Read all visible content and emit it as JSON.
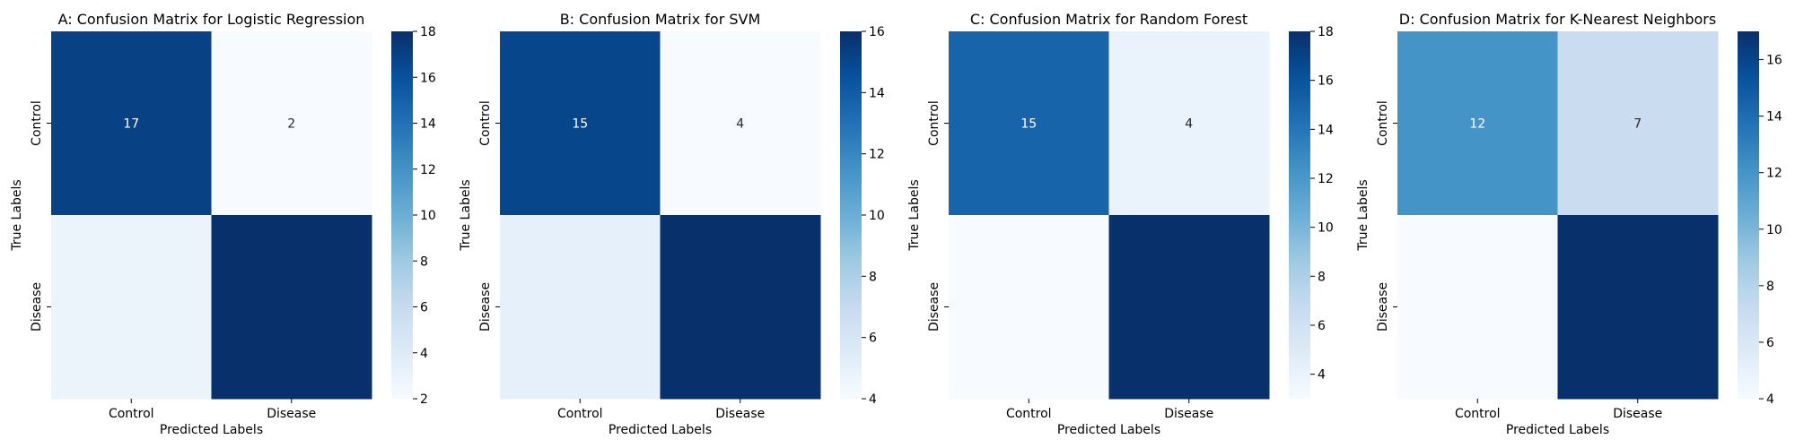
{
  "chart_data": [
    {
      "type": "heatmap",
      "title": "A: Confusion Matrix for Logistic Regression",
      "xlabel": "Predicted Labels",
      "ylabel": "True Labels",
      "x_categories": [
        "Control",
        "Disease"
      ],
      "y_categories": [
        "Control",
        "Disease"
      ],
      "values": [
        [
          17,
          2
        ],
        [
          3,
          18
        ]
      ],
      "shown_annotations": [
        "17",
        "2"
      ],
      "colorbar_range": [
        2,
        18
      ],
      "colorbar_ticks": [
        2,
        4,
        6,
        8,
        10,
        12,
        14,
        16,
        18
      ],
      "colormap": "Blues"
    },
    {
      "type": "heatmap",
      "title": "B: Confusion Matrix for SVM",
      "xlabel": "Predicted Labels",
      "ylabel": "True Labels",
      "x_categories": [
        "Control",
        "Disease"
      ],
      "y_categories": [
        "Control",
        "Disease"
      ],
      "values": [
        [
          15,
          4
        ],
        [
          5,
          16
        ]
      ],
      "shown_annotations": [
        "15",
        "4"
      ],
      "colorbar_range": [
        4,
        16
      ],
      "colorbar_ticks": [
        4,
        6,
        8,
        10,
        12,
        14,
        16
      ],
      "colormap": "Blues"
    },
    {
      "type": "heatmap",
      "title": "C: Confusion Matrix for Random Forest",
      "xlabel": "Predicted Labels",
      "ylabel": "True Labels",
      "x_categories": [
        "Control",
        "Disease"
      ],
      "y_categories": [
        "Control",
        "Disease"
      ],
      "values": [
        [
          15,
          4
        ],
        [
          3,
          18
        ]
      ],
      "shown_annotations": [
        "15",
        "4"
      ],
      "colorbar_range": [
        3,
        18
      ],
      "colorbar_ticks": [
        4,
        6,
        8,
        10,
        12,
        14,
        16,
        18
      ],
      "colormap": "Blues"
    },
    {
      "type": "heatmap",
      "title": "D: Confusion Matrix for K-Nearest Neighbors",
      "xlabel": "Predicted Labels",
      "ylabel": "True Labels",
      "x_categories": [
        "Control",
        "Disease"
      ],
      "y_categories": [
        "Control",
        "Disease"
      ],
      "values": [
        [
          12,
          7
        ],
        [
          4,
          17
        ]
      ],
      "shown_annotations": [
        "12",
        "7"
      ],
      "colorbar_range": [
        4,
        17
      ],
      "colorbar_ticks": [
        4,
        6,
        8,
        10,
        12,
        14,
        16
      ],
      "colormap": "Blues"
    }
  ]
}
